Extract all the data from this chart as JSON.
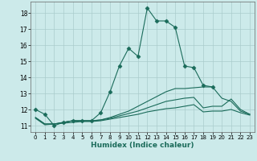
{
  "xlabel": "Humidex (Indice chaleur)",
  "background_color": "#cceaea",
  "grid_color": "#aacccc",
  "line_color": "#1a6b5a",
  "xlim": [
    -0.5,
    23.5
  ],
  "ylim": [
    10.6,
    18.7
  ],
  "xticks": [
    0,
    1,
    2,
    3,
    4,
    5,
    6,
    7,
    8,
    9,
    10,
    11,
    12,
    13,
    14,
    15,
    16,
    17,
    18,
    19,
    20,
    21,
    22,
    23
  ],
  "yticks": [
    11,
    12,
    13,
    14,
    15,
    16,
    17,
    18
  ],
  "series": [
    {
      "x": [
        0,
        1,
        2,
        3,
        4,
        5,
        6,
        7,
        8,
        9,
        10,
        11,
        12,
        13,
        14,
        15,
        16,
        17,
        18,
        19
      ],
      "y": [
        12.0,
        11.7,
        11.0,
        11.2,
        11.3,
        11.3,
        11.3,
        11.8,
        13.1,
        14.7,
        15.8,
        15.3,
        18.3,
        17.5,
        17.5,
        17.1,
        14.7,
        14.6,
        13.5,
        13.4
      ],
      "marker": "D",
      "markersize": 2.5
    },
    {
      "x": [
        0,
        1,
        2,
        3,
        4,
        5,
        6,
        7,
        8,
        9,
        10,
        11,
        12,
        13,
        14,
        15,
        16,
        17,
        18,
        19,
        20,
        21,
        22,
        23
      ],
      "y": [
        11.5,
        11.1,
        11.1,
        11.2,
        11.3,
        11.3,
        11.3,
        11.35,
        11.5,
        11.7,
        11.9,
        12.2,
        12.5,
        12.8,
        13.1,
        13.3,
        13.3,
        13.35,
        13.4,
        13.4,
        12.7,
        12.5,
        11.9,
        11.7
      ],
      "marker": null,
      "markersize": 0
    },
    {
      "x": [
        0,
        1,
        2,
        3,
        4,
        5,
        6,
        7,
        8,
        9,
        10,
        11,
        12,
        13,
        14,
        15,
        16,
        17,
        18,
        19,
        20,
        21,
        22,
        23
      ],
      "y": [
        11.5,
        11.1,
        11.1,
        11.2,
        11.3,
        11.3,
        11.3,
        11.35,
        11.45,
        11.6,
        11.75,
        11.9,
        12.1,
        12.3,
        12.5,
        12.6,
        12.7,
        12.75,
        12.1,
        12.2,
        12.2,
        12.65,
        12.0,
        11.7
      ],
      "marker": null,
      "markersize": 0
    },
    {
      "x": [
        0,
        1,
        2,
        3,
        4,
        5,
        6,
        7,
        8,
        9,
        10,
        11,
        12,
        13,
        14,
        15,
        16,
        17,
        18,
        19,
        20,
        21,
        22,
        23
      ],
      "y": [
        11.45,
        11.05,
        11.1,
        11.15,
        11.2,
        11.25,
        11.25,
        11.3,
        11.4,
        11.5,
        11.6,
        11.7,
        11.85,
        11.95,
        12.05,
        12.1,
        12.2,
        12.3,
        11.85,
        11.9,
        11.9,
        12.0,
        11.8,
        11.65
      ],
      "marker": null,
      "markersize": 0
    }
  ]
}
